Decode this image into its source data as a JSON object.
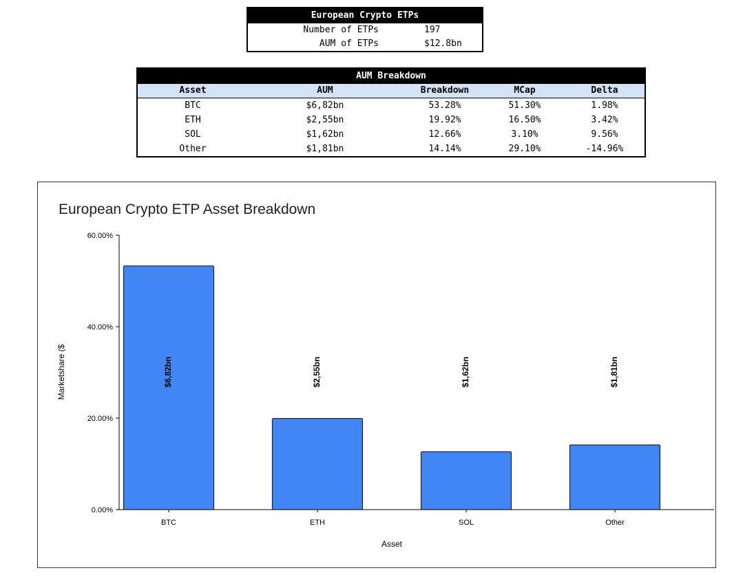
{
  "summary_table": {
    "title": "European Crypto ETPs",
    "rows": [
      {
        "label": "Number of ETPs",
        "value": "197"
      },
      {
        "label": "AUM of ETPs",
        "value": "$12.8bn"
      }
    ]
  },
  "breakdown_table": {
    "title": "AUM Breakdown",
    "columns": [
      "Asset",
      "AUM",
      "Breakdown",
      "MCap",
      "Delta"
    ],
    "rows": [
      [
        "BTC",
        "$6,82bn",
        "53.28%",
        "51.30%",
        "1.98%"
      ],
      [
        "ETH",
        "$2,55bn",
        "19.92%",
        "16.50%",
        "3.42%"
      ],
      [
        "SOL",
        "$1,62bn",
        "12.66%",
        "3.10%",
        "9.56%"
      ],
      [
        "Other",
        "$1,81bn",
        "14.14%",
        "29.10%",
        "-14.96%"
      ]
    ]
  },
  "chart_data": {
    "type": "bar",
    "title": "European Crypto ETP Asset Breakdown",
    "xlabel": "Asset",
    "ylabel": "Marketshare ($",
    "categories": [
      "BTC",
      "ETH",
      "SOL",
      "Other"
    ],
    "values": [
      53.28,
      19.92,
      12.66,
      14.14
    ],
    "data_labels": [
      "$6,82bn",
      "$2,55bn",
      "$1,62bn",
      "$1,81bn"
    ],
    "ylim": [
      0,
      60
    ],
    "yticks": [
      0,
      20,
      40,
      60
    ],
    "ytick_labels": [
      "0.00%",
      "20.00%",
      "40.00%",
      "60.00%"
    ],
    "grid": false,
    "legend": "none",
    "bar_color": "#4285f4"
  }
}
